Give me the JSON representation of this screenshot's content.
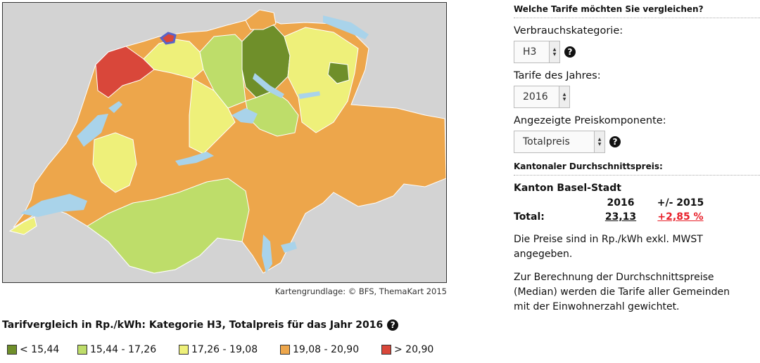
{
  "map": {
    "credit": "Kartengrundlage: © BFS, ThemaKart 2015",
    "title": "Tarifvergleich in Rp./kWh: Kategorie H3, Totalpreis für das Jahr 2016",
    "colors": {
      "class1": "#6f8f2a",
      "class2": "#bedd6a",
      "class3": "#eef07a",
      "class4": "#eda64b",
      "class5": "#d9473a",
      "lake": "#a9d3ea",
      "outside": "#d3d3d3",
      "border": "#ffffff",
      "selected": "#5964c8"
    },
    "legend": [
      {
        "label": "< 15,44",
        "color": "#6f8f2a"
      },
      {
        "label": "15,44 - 17,26",
        "color": "#bedd6a"
      },
      {
        "label": "17,26 - 19,08",
        "color": "#eef07a"
      },
      {
        "label": "19,08 - 20,90",
        "color": "#eda64b"
      },
      {
        "label": "> 20,90",
        "color": "#d9473a"
      }
    ]
  },
  "panel": {
    "compare_heading": "Welche Tarife möchten Sie vergleichen?",
    "category_label": "Verbrauchskategorie:",
    "category_value": "H3",
    "year_label": "Tarife des Jahres:",
    "year_value": "2016",
    "component_label": "Angezeigte Preiskomponente:",
    "component_value": "Totalpreis",
    "avg_heading": "Kantonaler Durchschnittspreis:",
    "canton_name": "Kanton Basel-Stadt",
    "col_year": "2016",
    "col_diff": "+/- 2015",
    "row_label": "Total:",
    "total_value": "23,13",
    "diff_value": "+2,85 %",
    "note1": "Die Preise sind in Rp./kWh exkl. MWST angegeben.",
    "note2": "Zur Berechnung der Durchschnittspreise (Median) werden die Tarife aller Gemeinden mit der Einwohnerzahl gewichtet.",
    "help_glyph": "?"
  }
}
